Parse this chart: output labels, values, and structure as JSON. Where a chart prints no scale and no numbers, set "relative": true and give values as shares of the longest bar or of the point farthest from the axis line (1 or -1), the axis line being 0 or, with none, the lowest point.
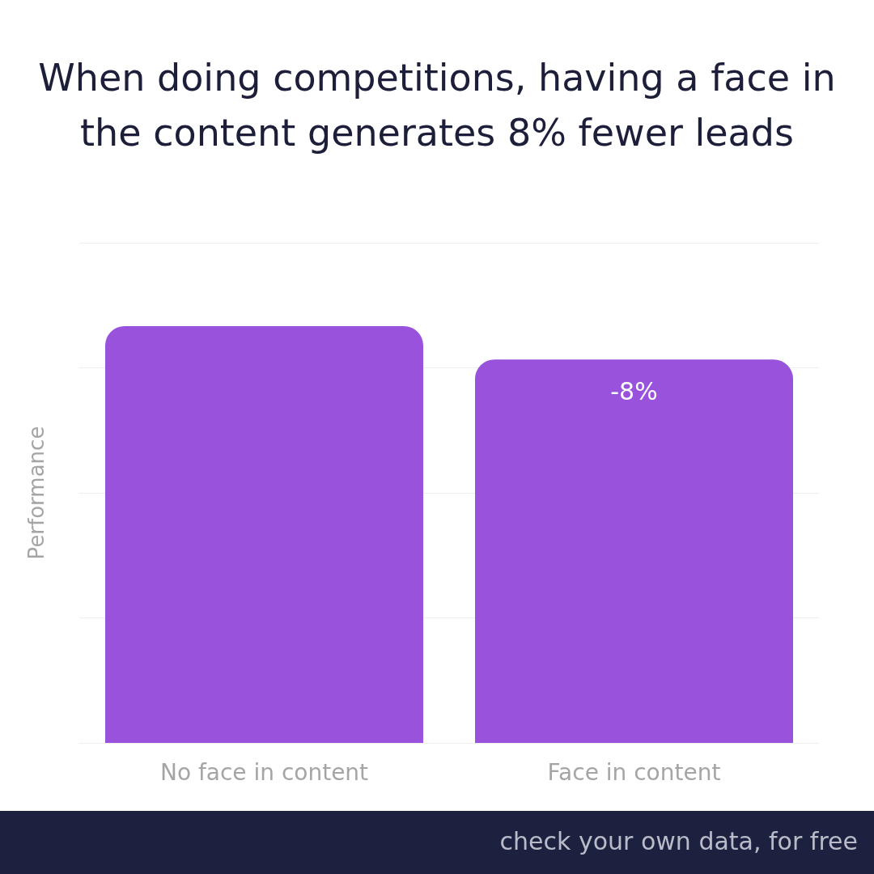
{
  "chart_data": {
    "type": "bar",
    "title": "When doing competitions, having a face in the content generates 8% fewer leads",
    "ylabel": "Performance",
    "categories": [
      "No face in content",
      "Face in content"
    ],
    "values": [
      1,
      0.92
    ],
    "color": "#9952dc",
    "relative": true,
    "grid": "y",
    "annotations": [
      {
        "text": "-8%",
        "x": "Face in content",
        "y": 0.92
      },
      "check your own data, for free"
    ]
  }
}
